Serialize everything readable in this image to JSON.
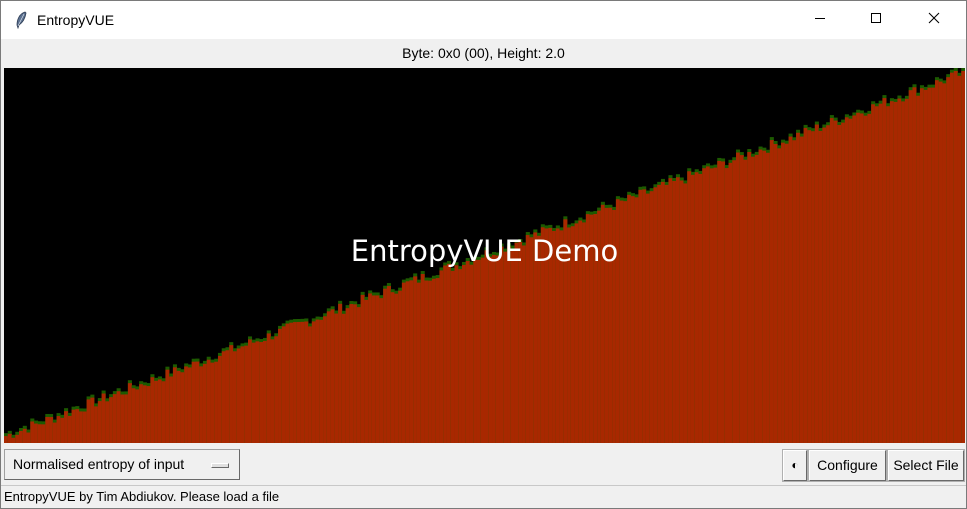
{
  "window": {
    "title": "EntropyVUE",
    "icon": "feather-icon",
    "controls": [
      "minimize-icon",
      "maximize-icon",
      "close-icon"
    ]
  },
  "status": {
    "text": "Byte: 0x0 (00), Height: 2.0"
  },
  "canvas": {
    "label": "EntropyVUE Demo",
    "background": "#000000",
    "bar_fill": "#a82800",
    "bar_edge": "#1d5a00",
    "label_color": "#ffffff"
  },
  "toolbar": {
    "mode_value": "Normalised entropy of input",
    "contrast_icon": "half-circle-icon",
    "contrast_glyph": "◐",
    "configure_label": "Configure",
    "select_file_label": "Select File"
  },
  "footer": {
    "text": "EntropyVUE by Tim Abdiukov. Please load a file"
  }
}
